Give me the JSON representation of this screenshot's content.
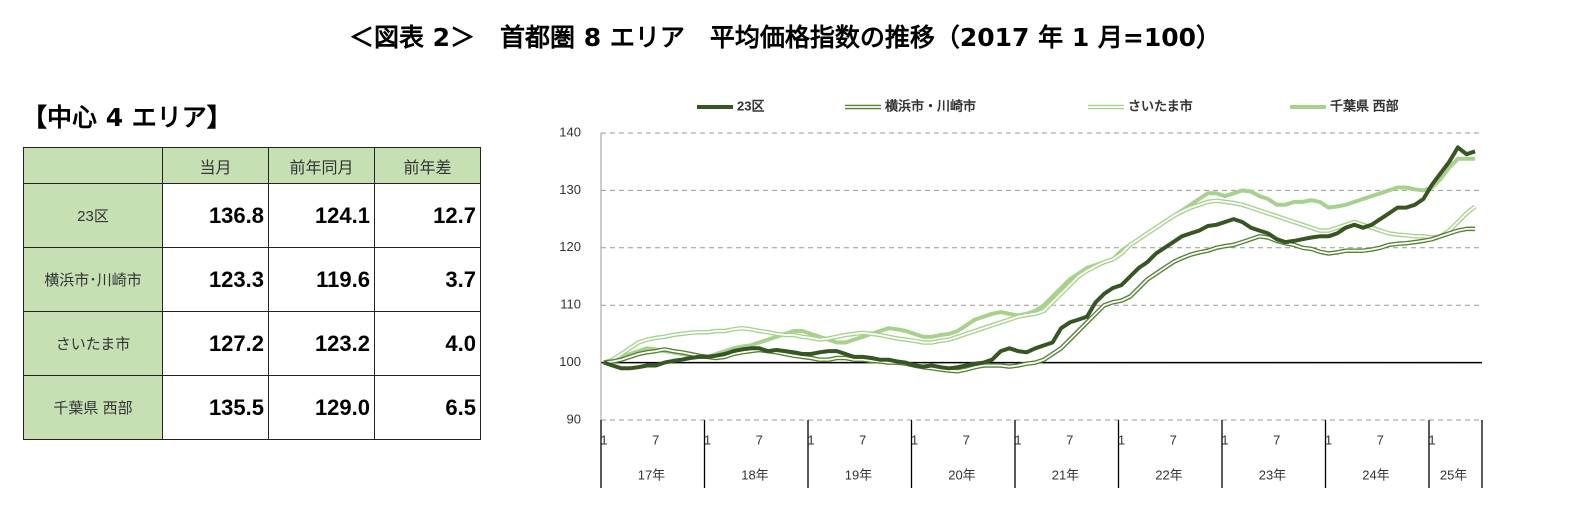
{
  "header": {
    "title": "＜図表 2＞　首都圏 8 エリア　平均価格指数の推移（2017 年 1 月=100）",
    "subtitle": "【中心 4 エリア】"
  },
  "table": {
    "columns": [
      "当月",
      "前年同月",
      "前年差"
    ],
    "rows": [
      {
        "label": "23区",
        "cells": [
          "136.8",
          "124.1",
          "12.7"
        ]
      },
      {
        "label": "横浜市･川崎市",
        "cells": [
          "123.3",
          "119.6",
          "3.7"
        ]
      },
      {
        "label": "さいたま市",
        "cells": [
          "127.2",
          "123.2",
          "4.0"
        ]
      },
      {
        "label": "千葉県 西部",
        "cells": [
          "135.5",
          "129.0",
          "6.5"
        ]
      }
    ]
  },
  "chart_data": {
    "type": "line",
    "ylim": [
      90,
      140
    ],
    "yticks": [
      90,
      100,
      110,
      120,
      130,
      140
    ],
    "grid": true,
    "reference_line": 100,
    "categories": [
      "1",
      null,
      null,
      null,
      null,
      null,
      "7",
      null,
      null,
      null,
      null,
      null,
      "1",
      null,
      null,
      null,
      null,
      null,
      "7",
      null,
      null,
      null,
      null,
      null,
      "1",
      null,
      null,
      null,
      null,
      null,
      "7",
      null,
      null,
      null,
      null,
      null,
      "1",
      null,
      null,
      null,
      null,
      null,
      "7",
      null,
      null,
      null,
      null,
      null,
      "1",
      null,
      null,
      null,
      null,
      null,
      "7",
      null,
      null,
      null,
      null,
      null,
      "1",
      null,
      null,
      null,
      null,
      null,
      "7",
      null,
      null,
      null,
      null,
      null,
      "1",
      null,
      null,
      null,
      null,
      null,
      "7",
      null,
      null,
      null,
      null,
      null,
      "1",
      null,
      null,
      null,
      null,
      null,
      "7",
      null,
      null,
      null,
      null,
      null,
      "1",
      null,
      null,
      null,
      null,
      null
    ],
    "year_labels": [
      "17年",
      "18年",
      "19年",
      "20年",
      "21年",
      "22年",
      "23年",
      "24年",
      "25年"
    ],
    "legend": "top",
    "series": [
      {
        "name": "23区",
        "color": "#375623",
        "style": "solid",
        "values": [
          100,
          99.5,
          99,
          99,
          99.2,
          99.5,
          99.5,
          100,
          100.3,
          100.5,
          100.8,
          101,
          101,
          101.2,
          101.5,
          102,
          102.3,
          102.5,
          102.5,
          102,
          102.2,
          102,
          101.8,
          101.5,
          101.5,
          101.8,
          102,
          102,
          101.5,
          101,
          101,
          100.8,
          100.5,
          100.5,
          100.2,
          100,
          99.5,
          99.3,
          99.5,
          99.2,
          99,
          99.2,
          99.5,
          99.8,
          100,
          100.5,
          102,
          102.5,
          102,
          101.8,
          102.5,
          103,
          103.5,
          106,
          107,
          107.5,
          108,
          110.5,
          112,
          113,
          113.5,
          115,
          116.5,
          117.5,
          119,
          120,
          121,
          122,
          122.5,
          123,
          123.8,
          124,
          124.5,
          125,
          124.5,
          123.5,
          123,
          122.5,
          121.5,
          121,
          121.2,
          121.5,
          121.8,
          122,
          122,
          122.5,
          123.5,
          124,
          123.5,
          124,
          125,
          126,
          127,
          127,
          127.5,
          128.5,
          131,
          133,
          135,
          137.5,
          136.3,
          136.8
        ]
      },
      {
        "name": "横浜市・川崎市",
        "color": "#548235",
        "style": "outline",
        "values": [
          100,
          100.2,
          100.5,
          101,
          101.5,
          101.8,
          102,
          102.3,
          102,
          101.8,
          101.5,
          101.2,
          101,
          100.8,
          101,
          101.5,
          101.8,
          102,
          102.2,
          102,
          101.8,
          101.5,
          101.2,
          101,
          100.8,
          100.5,
          100.5,
          100.8,
          100.8,
          100.5,
          100.5,
          100.3,
          100.2,
          100,
          100,
          99.8,
          99.5,
          99.2,
          99,
          98.8,
          98.6,
          98.5,
          98.8,
          99.2,
          99.5,
          99.5,
          99.5,
          99.3,
          99.5,
          99.8,
          100,
          100.5,
          101.5,
          102.5,
          104,
          105.5,
          107,
          108.5,
          110,
          110.5,
          110.8,
          111.5,
          113,
          114.5,
          115.5,
          116.5,
          117.5,
          118.2,
          118.8,
          119.2,
          119.5,
          120,
          120.3,
          120.5,
          121,
          121.5,
          122,
          121.8,
          121.2,
          120.8,
          120.5,
          120,
          119.8,
          119.3,
          119,
          119.2,
          119.5,
          119.5,
          119.5,
          119.7,
          120,
          120.5,
          120.7,
          120.8,
          121,
          121.2,
          121.5,
          122,
          122.5,
          123,
          123.3,
          123.3
        ]
      },
      {
        "name": "さいたま市",
        "color": "#a9d18e",
        "style": "outline",
        "values": [
          100,
          100.5,
          101.5,
          102.5,
          103.5,
          104,
          104.3,
          104.5,
          104.8,
          105,
          105.2,
          105.3,
          105.3,
          105.5,
          105.5,
          105.8,
          106,
          105.8,
          105.5,
          105.3,
          105,
          104.8,
          104.8,
          104.5,
          104.3,
          104,
          104.2,
          104.5,
          104.8,
          105,
          105.2,
          105,
          104.8,
          104.5,
          104.2,
          104,
          103.8,
          103.5,
          103.5,
          103.8,
          104,
          104.5,
          105,
          105.5,
          106,
          106.5,
          107,
          107.5,
          108,
          108.3,
          108.5,
          109,
          110.5,
          112,
          113.5,
          115,
          116,
          116.8,
          117.5,
          118,
          119,
          120.5,
          121.5,
          122.5,
          123.5,
          124.5,
          125.5,
          126.3,
          127,
          127.5,
          128,
          128.2,
          128,
          127.8,
          127.5,
          127,
          126.5,
          126,
          125.5,
          125,
          124.5,
          124,
          123.5,
          123,
          123,
          123.5,
          124,
          124.5,
          124,
          123.5,
          123,
          122.5,
          122.3,
          122.2,
          122,
          122,
          121.8,
          122,
          123,
          124.5,
          126,
          127.2
        ]
      },
      {
        "name": "千葉県 西部",
        "color": "#a9d18e",
        "style": "solid",
        "values": [
          100,
          100.5,
          101,
          101.5,
          102,
          102.5,
          102.3,
          102,
          101.8,
          101.5,
          101.3,
          101,
          101,
          101.5,
          102,
          102.5,
          102.8,
          103,
          103.5,
          104,
          104.5,
          105,
          105.5,
          105.5,
          105,
          104.5,
          104,
          103.5,
          103.5,
          104,
          104.5,
          105,
          105.5,
          106,
          105.8,
          105.5,
          105,
          104.5,
          104.5,
          104.8,
          105,
          105.5,
          106.5,
          107.5,
          108,
          108.5,
          108.8,
          108.5,
          108.2,
          108.5,
          109,
          110,
          111.5,
          113,
          114.5,
          115.5,
          116.5,
          117,
          117.5,
          118,
          119.5,
          120.5,
          121.5,
          122.5,
          123.5,
          124.5,
          125.5,
          126.5,
          127.5,
          128.5,
          129.5,
          129.5,
          129,
          129.5,
          130,
          129.8,
          129,
          128.5,
          127.5,
          127.5,
          128,
          128,
          128.3,
          128,
          127,
          127.2,
          127.5,
          128,
          128.5,
          129,
          129.5,
          130,
          130.5,
          130.5,
          130.2,
          130,
          130.5,
          132,
          134,
          135.5,
          135.5,
          135.5
        ]
      }
    ]
  }
}
